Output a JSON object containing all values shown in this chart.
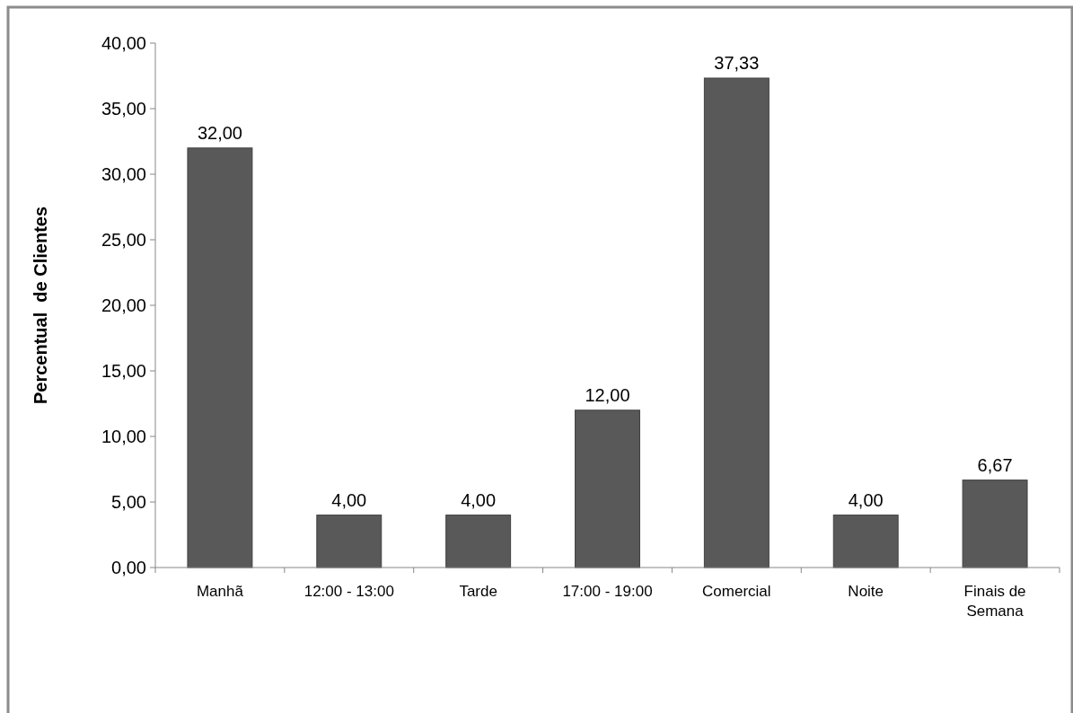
{
  "chart_data": {
    "type": "bar",
    "ylabel": "Percentual  de Clientes",
    "categories": [
      "Manhã",
      "12:00 - 13:00",
      "Tarde",
      "17:00 - 19:00",
      "Comercial",
      "Noite",
      "Finais de Semana"
    ],
    "values": [
      32,
      4,
      4,
      12,
      37.33,
      4,
      6.67
    ],
    "value_labels": [
      "32,00",
      "4,00",
      "4,00",
      "12,00",
      "37,33",
      "4,00",
      "6,67"
    ],
    "color": "#595959",
    "ylim": [
      0,
      40
    ],
    "yticks": [
      {
        "value": 0,
        "label": "0,00"
      },
      {
        "value": 5,
        "label": "5,00"
      },
      {
        "value": 10,
        "label": "10,00"
      },
      {
        "value": 15,
        "label": "15,00"
      },
      {
        "value": 20,
        "label": "20,00"
      },
      {
        "value": 25,
        "label": "25,00"
      },
      {
        "value": 30,
        "label": "30,00"
      },
      {
        "value": 35,
        "label": "35,00"
      },
      {
        "value": 40,
        "label": "40,00"
      }
    ],
    "grid": false
  }
}
